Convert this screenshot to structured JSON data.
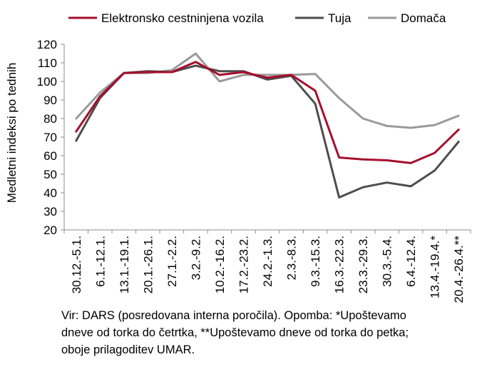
{
  "chart_data": {
    "type": "line",
    "title": "",
    "xlabel": "",
    "ylabel": "Medletni indeksi po tednih",
    "ylim": [
      20,
      120
    ],
    "yticks": [
      20,
      30,
      40,
      50,
      60,
      70,
      80,
      90,
      100,
      110,
      120
    ],
    "grid": false,
    "legend_position": "top",
    "categories": [
      "30.12.-5.1.",
      "6.1.-12.1.",
      "13.1.-19.1.",
      "20.1.-26.1.",
      "27.1.-2.2.",
      "3.2.-9.2.",
      "10.2.-16.2.",
      "17.2.-23.2.",
      "24.2.-1.3.",
      "2.3.-8.3.",
      "9.3.-15.3.",
      "16.3.-22.3.",
      "23.3.-29.3.",
      "30.3.-5.4.",
      "6.4.-12.4.",
      "13.4.-19.4.*",
      "20.4.-26.4.**"
    ],
    "series": [
      {
        "name": "Elektronsko cestninjena vozila",
        "color": "#a50f2d",
        "values": [
          73,
          92,
          104.5,
          105,
          105,
          110.5,
          103.5,
          105,
          102,
          103.5,
          95,
          59,
          58,
          57.5,
          56,
          61.5,
          74
        ]
      },
      {
        "name": "Tuja",
        "color": "#4d4d4d",
        "values": [
          68,
          91,
          104.5,
          105.5,
          105,
          108.5,
          105.5,
          105.5,
          101,
          103,
          88,
          37.5,
          43,
          45.5,
          43.5,
          52,
          67.5
        ]
      },
      {
        "name": "Domača",
        "color": "#9a9a9a",
        "values": [
          80,
          94,
          104.5,
          104.5,
          106,
          115,
          100,
          103.5,
          103.5,
          103.5,
          104,
          91,
          80,
          76,
          75,
          76.5,
          81.5
        ]
      }
    ]
  },
  "note_lines": [
    "Vir: DARS (posredovana interna poročila). Opomba: *Upoštevamo",
    "dneve od torka do četrtka, **Upoštevamo dneve od torka do petka;",
    "oboje prilagoditev UMAR."
  ]
}
